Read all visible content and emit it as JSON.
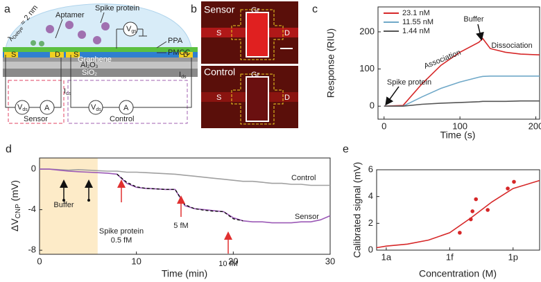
{
  "panel_labels": [
    "a",
    "b",
    "c",
    "d",
    "e"
  ],
  "panel_a": {
    "aptamer": "Aptamer",
    "spike_protein": "Spike protein",
    "debye": {
      "main": "λ",
      "sub": "Debye",
      "rest": " ≈ 2 nm"
    },
    "vgs": {
      "main": "V",
      "sub": "gs"
    },
    "ppa": "PPA",
    "pmcc": "PMCC",
    "graphene": "Graphene",
    "al2o3": {
      "a": "Al",
      "s1": "2",
      "b": "O",
      "s2": "3"
    },
    "sio2": {
      "a": "SiO",
      "s": "2"
    },
    "devices": [
      {
        "name": "Sensor",
        "source": "S",
        "drain": "D",
        "vds": {
          "main": "V",
          "sub": "ds"
        },
        "ammeter": "A",
        "ids": {
          "main": "I",
          "sub": "ds"
        }
      },
      {
        "name": "Control",
        "source": "S",
        "drain": "D",
        "vds": {
          "main": "V",
          "sub": "ds"
        },
        "ammeter": "A",
        "ids": {
          "main": "I",
          "sub": "ds"
        }
      }
    ]
  },
  "panel_b": {
    "images": [
      {
        "label": "Sensor",
        "gate": "Gr",
        "source": "S",
        "drain": "D"
      },
      {
        "label": "Control",
        "gate": "Gr",
        "source": "S",
        "drain": "D"
      }
    ]
  },
  "chart_data": [
    {
      "type": "line",
      "xlabel": "Time (s)",
      "ylabel": "Response (RIU)",
      "x": [
        0,
        25,
        50,
        75,
        100,
        125,
        130,
        140,
        160,
        180,
        205
      ],
      "series": [
        {
          "name": "23.1 nM",
          "color": "#d62728",
          "values": [
            0,
            2,
            60,
            110,
            145,
            172,
            182,
            155,
            145,
            140,
            138
          ]
        },
        {
          "name": "11.55 nM",
          "color": "#6fa8c8",
          "values": [
            0,
            0,
            25,
            48,
            65,
            78,
            80,
            81,
            81,
            81,
            81
          ]
        },
        {
          "name": "1.44 nM",
          "color": "#555555",
          "values": [
            0,
            0,
            5,
            8,
            10,
            12,
            13,
            13,
            13,
            14,
            14
          ]
        }
      ],
      "xlim": [
        -8,
        205
      ],
      "xticks": [
        0,
        100,
        200
      ],
      "ylim": [
        -35,
        267
      ],
      "yticks": [
        0,
        100,
        200
      ],
      "legend": "upper left",
      "annotations": [
        "Spike protein",
        "Buffer",
        "Association",
        "Dissociation"
      ]
    },
    {
      "type": "line",
      "xlabel": "Time (min)",
      "ylabel": {
        "main": "ΔV",
        "sub": "CNP",
        "unit": " (mV)"
      },
      "x": [
        0,
        1,
        2,
        3,
        4,
        5,
        6,
        7,
        8,
        9,
        10,
        11,
        12,
        13,
        14,
        15,
        16,
        17,
        18,
        19,
        20,
        21,
        22,
        23,
        24,
        25,
        26,
        27,
        28,
        29,
        30
      ],
      "series": [
        {
          "name": "Control",
          "color": "#a0a0a0",
          "values": [
            0,
            0,
            -0.05,
            -0.1,
            -0.05,
            -0.1,
            -0.15,
            -0.2,
            -0.2,
            -0.3,
            -0.3,
            -0.35,
            -0.4,
            -0.45,
            -0.5,
            -0.6,
            -0.7,
            -0.8,
            -0.9,
            -1.0,
            -1.1,
            -1.2,
            -1.2,
            -1.3,
            -1.4,
            -1.4,
            -1.5,
            -1.5,
            -1.6,
            -1.6,
            -1.6
          ]
        },
        {
          "name": "Sensor",
          "color": "#9b59b6",
          "values": [
            0,
            0,
            -0.1,
            -0.2,
            -0.25,
            -0.3,
            -0.35,
            -0.4,
            -0.5,
            -1.4,
            -1.8,
            -1.9,
            -1.95,
            -2.0,
            -2.0,
            -3.6,
            -3.9,
            -4.0,
            -4.1,
            -4.2,
            -4.8,
            -5.1,
            -5.2,
            -5.2,
            -5.3,
            -5.3,
            -5.3,
            -5.2,
            -5.2,
            -5.0,
            -4.6
          ]
        },
        {
          "color": "#000000",
          "dash": true,
          "values": [
            null,
            null,
            null,
            null,
            null,
            null,
            null,
            null,
            -0.5,
            -1.3,
            -1.75,
            -1.9,
            -1.95,
            -2.0,
            -2.0,
            -3.5,
            -3.9,
            -4.05,
            -4.15,
            -4.2,
            -4.9,
            -5.1,
            null,
            null,
            null,
            null,
            null,
            null,
            null,
            null,
            null
          ]
        }
      ],
      "xlim": [
        0,
        30
      ],
      "xticks": [
        0,
        10,
        20,
        30
      ],
      "ylim": [
        -8.4,
        1.1
      ],
      "yticks": [
        -8,
        -4,
        0
      ],
      "highlight_xrange": [
        0,
        6
      ],
      "highlight_color": "#fdebc8",
      "annotations": [
        "Buffer",
        "Spike protein",
        "0.5 fM",
        "5 fM",
        "10 fM"
      ]
    },
    {
      "type": "scatter",
      "xlabel": "Concentration (M)",
      "ylabel": "Calibrated signal (mV)",
      "xscale": "log",
      "x": [
        3e-15,
        1e-14,
        1.2e-14,
        1.75e-14,
        6.3e-14,
        5.6e-13,
        1.1e-12
      ],
      "values": [
        1.3,
        2.3,
        2.9,
        3.8,
        3.0,
        4.6,
        5.1
      ],
      "color": "#d62728",
      "fit": {
        "x": [
          3.5e-19,
          1e-18,
          1e-17,
          1e-16,
          1e-15,
          1e-14,
          1e-13,
          1e-12,
          1.8e-11
        ],
        "values": [
          0.18,
          0.3,
          0.45,
          0.75,
          1.3,
          2.4,
          3.6,
          4.6,
          5.2
        ],
        "color": "#d62728"
      },
      "xlim": [
        3.5e-19,
        1.8e-11
      ],
      "xticks": [
        {
          "value": 1e-18,
          "label": "1a"
        },
        {
          "value": 1e-15,
          "label": "1f"
        },
        {
          "value": 1e-12,
          "label": "1p"
        }
      ],
      "ylim": [
        0,
        6
      ],
      "yticks": [
        0,
        2,
        4,
        6
      ]
    }
  ]
}
